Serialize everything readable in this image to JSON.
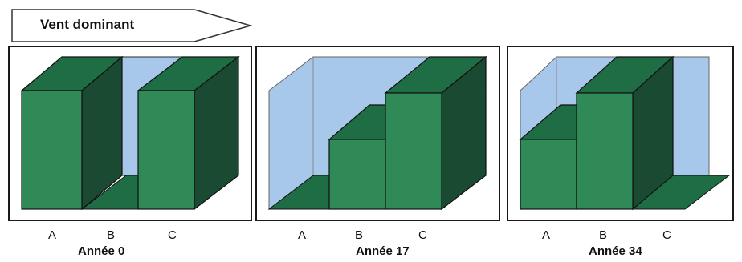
{
  "wind": {
    "label": "Vent dominant"
  },
  "colors": {
    "sky": "#a7c8ea",
    "front": "#2f8a57",
    "top": "#1f6d45",
    "side": "#1a4a31"
  },
  "panels": [
    {
      "year": "Année 0",
      "columns": [
        "A",
        "B",
        "C"
      ],
      "heights": [
        "tall",
        "none",
        "tall"
      ]
    },
    {
      "year": "Année 17",
      "columns": [
        "A",
        "B",
        "C"
      ],
      "heights": [
        "none",
        "medium",
        "tall"
      ]
    },
    {
      "year": "Année 34",
      "columns": [
        "A",
        "B",
        "C"
      ],
      "heights": [
        "medium",
        "tall",
        "none"
      ]
    }
  ]
}
